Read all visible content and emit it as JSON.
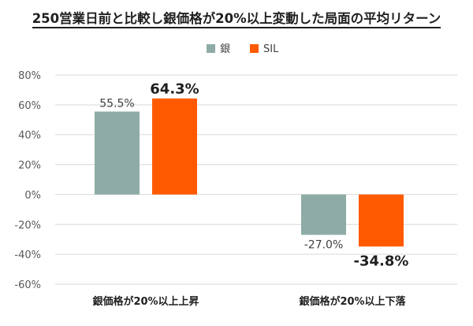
{
  "chart_data": {
    "type": "bar",
    "title": "250営業日前と比較し銀価格が20%以上変動した局面の平均リターン",
    "categories": [
      "銀価格が20%以上上昇",
      "銀価格が20%以上下落"
    ],
    "series": [
      {
        "name": "銀",
        "values": [
          55.5,
          -27.0
        ],
        "labels": [
          "55.5%",
          "-27.0%"
        ],
        "color": "#8eaca5",
        "emphasis": false
      },
      {
        "name": "SIL",
        "values": [
          64.3,
          -34.8
        ],
        "labels": [
          "64.3%",
          "-34.8%"
        ],
        "color": "#ff5a00",
        "emphasis": true
      }
    ],
    "ylim": [
      -60,
      80
    ],
    "yticks": [
      80,
      60,
      40,
      20,
      0,
      -20,
      -40,
      -60
    ],
    "ytick_labels": [
      "80%",
      "60%",
      "40%",
      "20%",
      "0%",
      "-20%",
      "-40%",
      "-60%"
    ],
    "grid": true,
    "legend_position": "top-center"
  }
}
